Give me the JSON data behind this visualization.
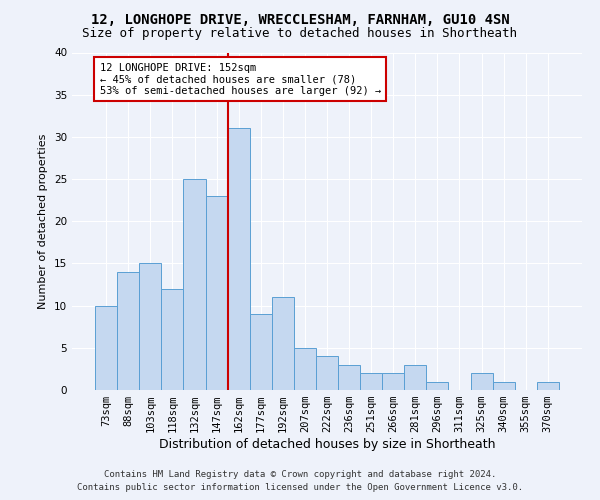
{
  "title_line1": "12, LONGHOPE DRIVE, WRECCLESHAM, FARNHAM, GU10 4SN",
  "title_line2": "Size of property relative to detached houses in Shortheath",
  "xlabel": "Distribution of detached houses by size in Shortheath",
  "ylabel": "Number of detached properties",
  "categories": [
    "73sqm",
    "88sqm",
    "103sqm",
    "118sqm",
    "132sqm",
    "147sqm",
    "162sqm",
    "177sqm",
    "192sqm",
    "207sqm",
    "222sqm",
    "236sqm",
    "251sqm",
    "266sqm",
    "281sqm",
    "296sqm",
    "311sqm",
    "325sqm",
    "340sqm",
    "355sqm",
    "370sqm"
  ],
  "values": [
    10,
    14,
    15,
    12,
    25,
    23,
    31,
    9,
    11,
    5,
    4,
    3,
    2,
    2,
    3,
    1,
    0,
    2,
    1,
    0,
    1
  ],
  "bar_color": "#c5d8f0",
  "bar_edge_color": "#5a9fd4",
  "vline_x": 5.5,
  "vline_color": "#cc0000",
  "annotation_line1": "12 LONGHOPE DRIVE: 152sqm",
  "annotation_line2": "← 45% of detached houses are smaller (78)",
  "annotation_line3": "53% of semi-detached houses are larger (92) →",
  "annotation_box_color": "#ffffff",
  "annotation_box_edge": "#cc0000",
  "ylim": [
    0,
    40
  ],
  "yticks": [
    0,
    5,
    10,
    15,
    20,
    25,
    30,
    35,
    40
  ],
  "footer_line1": "Contains HM Land Registry data © Crown copyright and database right 2024.",
  "footer_line2": "Contains public sector information licensed under the Open Government Licence v3.0.",
  "bg_color": "#eef2fa",
  "grid_color": "#ffffff",
  "title1_fontsize": 10,
  "title2_fontsize": 9,
  "xlabel_fontsize": 9,
  "ylabel_fontsize": 8,
  "tick_fontsize": 7.5,
  "footer_fontsize": 6.5,
  "annotation_fontsize": 7.5
}
